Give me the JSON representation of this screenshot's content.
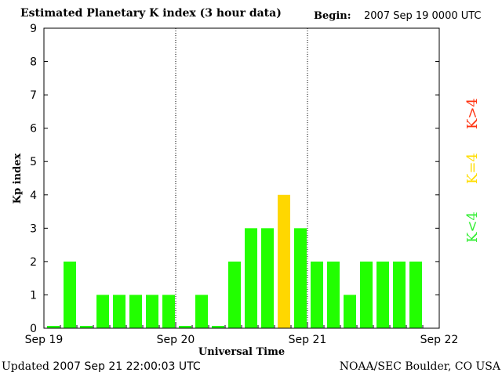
{
  "header": {
    "title": "Estimated Planetary K index (3 hour data)",
    "begin_label": "Begin:",
    "begin_value": "2007 Sep 19 0000 UTC"
  },
  "footer": {
    "updated_label": "Updated",
    "updated_value": "2007 Sep 21 22:00:03 UTC",
    "source": "NOAA/SEC Boulder, CO USA"
  },
  "legend": {
    "items": [
      {
        "label": "K<4",
        "color": "#33ee33"
      },
      {
        "label": "K=4",
        "color": "#ffdd00"
      },
      {
        "label": "K>4",
        "color": "#ff3311"
      }
    ]
  },
  "colors": {
    "below4": "#22ff00",
    "equal4": "#ffd700",
    "above4": "#ff2200"
  },
  "chart_data": {
    "type": "bar",
    "title": "Estimated Planetary K index (3 hour data)",
    "xlabel": "Universal Time",
    "ylabel": "Kp index",
    "ylim": [
      0,
      9
    ],
    "yticks": [
      "0",
      "1",
      "2",
      "3",
      "4",
      "5",
      "6",
      "7",
      "8",
      "9"
    ],
    "xticks": [
      "Sep 19",
      "Sep 20",
      "Sep 21",
      "Sep 22"
    ],
    "day_dividers": [
      "Sep 20",
      "Sep 21"
    ],
    "bar_hours_utc": 3,
    "values": [
      0,
      2,
      0,
      1,
      1,
      1,
      1,
      1,
      0,
      1,
      0,
      2,
      3,
      3,
      4,
      3,
      2,
      2,
      1,
      2,
      2,
      2,
      2
    ]
  }
}
